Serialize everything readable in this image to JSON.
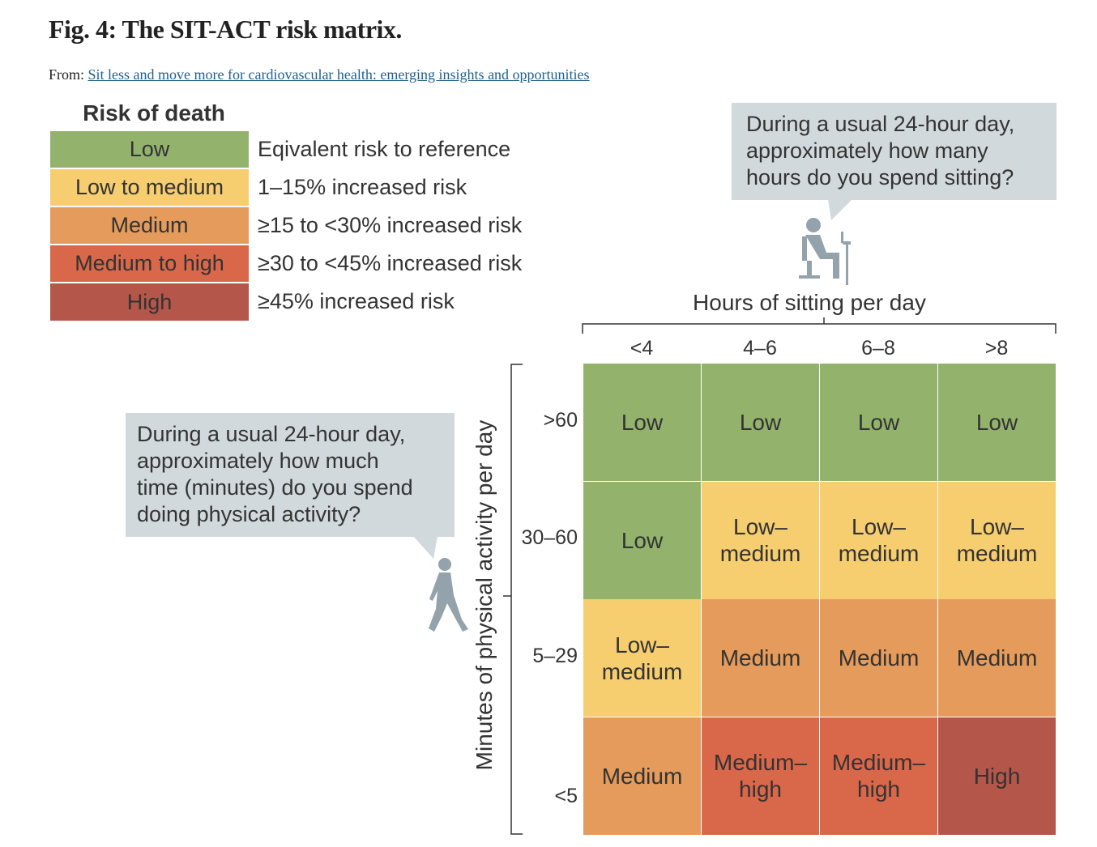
{
  "header": {
    "title": "Fig. 4: The SIT-ACT risk matrix.",
    "source_prefix": "From:",
    "source_link": "Sit less and move more for cardiovascular health: emerging insights and opportunities"
  },
  "legend": {
    "title": "Risk of death",
    "items": [
      {
        "label": "Low",
        "description": "Eqivalent risk to reference",
        "color": "#93b36d"
      },
      {
        "label": "Low to medium",
        "description": "1–15% increased risk",
        "color": "#f6cd6f"
      },
      {
        "label": "Medium",
        "description": "≥15 to <30% increased risk",
        "color": "#e49b5b"
      },
      {
        "label": "Medium to high",
        "description": "≥30 to <45% increased risk",
        "color": "#d9674a"
      },
      {
        "label": "High",
        "description": "≥45% increased risk",
        "color": "#b5564a"
      }
    ]
  },
  "questions": {
    "sitting": [
      "During a usual 24-hour day,",
      "approximately how many",
      "hours do you spend sitting?"
    ],
    "activity": [
      "During a usual 24-hour day,",
      "approximately how much",
      "time (minutes) do you spend",
      "doing physical activity?"
    ]
  },
  "matrix": {
    "x_label": "Hours of sitting per day",
    "columns": [
      "<4",
      "4–6",
      "6–8",
      ">8"
    ],
    "y_label": "Minutes of physical activity per day",
    "rows": [
      ">60",
      "30–60",
      "5–29",
      "<5"
    ],
    "cells": [
      [
        {
          "lines": [
            "Low"
          ],
          "color": "#93b36d"
        },
        {
          "lines": [
            "Low"
          ],
          "color": "#93b36d"
        },
        {
          "lines": [
            "Low"
          ],
          "color": "#93b36d"
        },
        {
          "lines": [
            "Low"
          ],
          "color": "#93b36d"
        }
      ],
      [
        {
          "lines": [
            "Low"
          ],
          "color": "#93b36d"
        },
        {
          "lines": [
            "Low–",
            "medium"
          ],
          "color": "#f6cd6f"
        },
        {
          "lines": [
            "Low–",
            "medium"
          ],
          "color": "#f6cd6f"
        },
        {
          "lines": [
            "Low–",
            "medium"
          ],
          "color": "#f6cd6f"
        }
      ],
      [
        {
          "lines": [
            "Low–",
            "medium"
          ],
          "color": "#f6cd6f"
        },
        {
          "lines": [
            "Medium"
          ],
          "color": "#e49b5b"
        },
        {
          "lines": [
            "Medium"
          ],
          "color": "#e49b5b"
        },
        {
          "lines": [
            "Medium"
          ],
          "color": "#e49b5b"
        }
      ],
      [
        {
          "lines": [
            "Medium"
          ],
          "color": "#e49b5b"
        },
        {
          "lines": [
            "Medium–",
            "high"
          ],
          "color": "#d9674a"
        },
        {
          "lines": [
            "Medium–",
            "high"
          ],
          "color": "#d9674a"
        },
        {
          "lines": [
            "High"
          ],
          "color": "#b5564a"
        }
      ]
    ]
  }
}
